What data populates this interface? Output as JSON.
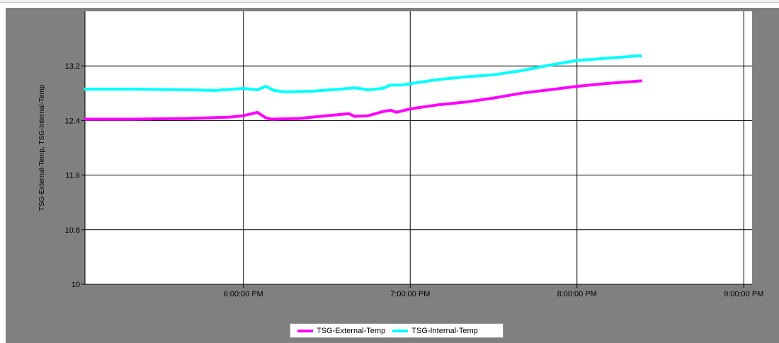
{
  "colors": {
    "external": "#ff00ff",
    "internal": "#00ffff",
    "panel_bg": "#808080",
    "plot_bg": "#ffffff",
    "grid": "#000000"
  },
  "legend": {
    "items": [
      {
        "label": "TSG-External-Temp",
        "color": "#ff00ff"
      },
      {
        "label": "TSG-Internal-Temp",
        "color": "#00ffff"
      }
    ]
  },
  "chart_data": {
    "type": "line",
    "title": "",
    "xlabel": "",
    "ylabel": "TSG-External-Temp, TSG-Internal-Temp",
    "xlim": [
      "5:03:00 PM",
      "9:03:00 PM"
    ],
    "ylim": [
      10,
      14
    ],
    "grid": true,
    "legend_position": "bottom-center",
    "x_ticks": [
      "6:00:00 PM",
      "7:00:00 PM",
      "8:00:00 PM",
      "9:00:00 PM"
    ],
    "y_ticks": [
      "10",
      "10.8",
      "11.6",
      "12.4",
      "13.2"
    ],
    "series": [
      {
        "name": "TSG-External-Temp",
        "color": "#ff00ff",
        "x": [
          "5:03 PM",
          "5:20 PM",
          "5:40 PM",
          "5:55 PM",
          "6:00 PM",
          "6:03 PM",
          "6:05 PM",
          "6:08 PM",
          "6:10 PM",
          "6:20 PM",
          "6:30 PM",
          "6:38 PM",
          "6:40 PM",
          "6:45 PM",
          "6:50 PM",
          "6:53 PM",
          "6:55 PM",
          "7:00 PM",
          "7:10 PM",
          "7:20 PM",
          "7:30 PM",
          "7:40 PM",
          "7:50 PM",
          "8:00 PM",
          "8:10 PM",
          "8:23 PM"
        ],
        "y": [
          12.42,
          12.42,
          12.43,
          12.45,
          12.47,
          12.5,
          12.52,
          12.44,
          12.42,
          12.43,
          12.47,
          12.5,
          12.46,
          12.47,
          12.53,
          12.55,
          12.52,
          12.57,
          12.63,
          12.67,
          12.73,
          12.8,
          12.85,
          12.9,
          12.94,
          12.98
        ]
      },
      {
        "name": "TSG-Internal-Temp",
        "color": "#00ffff",
        "x": [
          "5:03 PM",
          "5:20 PM",
          "5:40 PM",
          "5:50 PM",
          "6:00 PM",
          "6:05 PM",
          "6:08 PM",
          "6:11 PM",
          "6:15 PM",
          "6:25 PM",
          "6:35 PM",
          "6:40 PM",
          "6:45 PM",
          "6:50 PM",
          "6:53 PM",
          "6:57 PM",
          "7:00 PM",
          "7:10 PM",
          "7:20 PM",
          "7:30 PM",
          "7:40 PM",
          "7:50 PM",
          "8:00 PM",
          "8:10 PM",
          "8:23 PM"
        ],
        "y": [
          12.86,
          12.86,
          12.85,
          12.84,
          12.87,
          12.85,
          12.9,
          12.84,
          12.82,
          12.83,
          12.86,
          12.88,
          12.85,
          12.87,
          12.92,
          12.92,
          12.94,
          13.0,
          13.04,
          13.07,
          13.13,
          13.21,
          13.28,
          13.31,
          13.35
        ]
      }
    ]
  }
}
